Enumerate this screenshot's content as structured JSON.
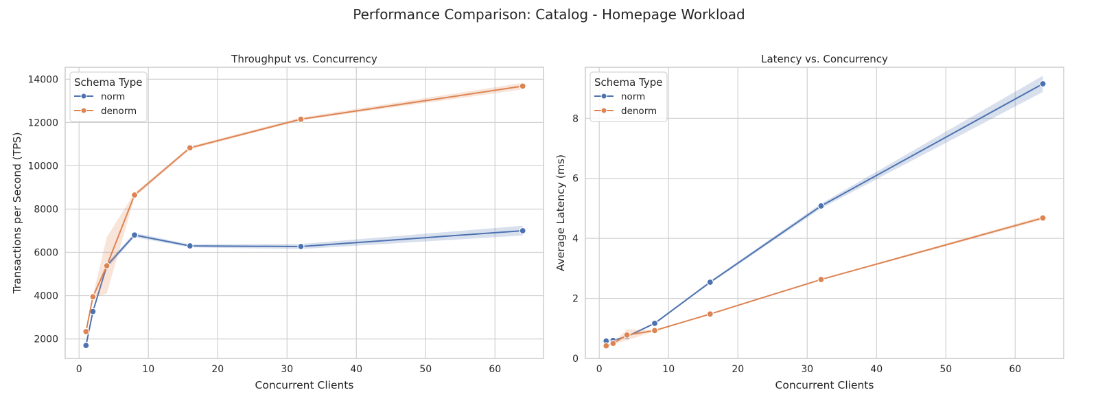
{
  "suptitle": "Performance Comparison: Catalog - Homepage Workload",
  "colors": {
    "norm": "#4c72b0",
    "denorm": "#dd8452",
    "grid": "#d0d0d0",
    "axes": "#cccccc"
  },
  "chart_data": [
    {
      "type": "line",
      "title": "Throughput vs. Concurrency",
      "xlabel": "Concurrent Clients",
      "ylabel": "Transactions per Second (TPS)",
      "xlim": [
        -2,
        67
      ],
      "ylim": [
        1100,
        14550
      ],
      "xticks": [
        0,
        10,
        20,
        30,
        40,
        50,
        60
      ],
      "yticks": [
        2000,
        4000,
        6000,
        8000,
        10000,
        12000,
        14000
      ],
      "grid": true,
      "legend": {
        "title": "Schema Type",
        "position": "top-left"
      },
      "series": [
        {
          "name": "norm",
          "x": [
            1,
            2,
            4,
            8,
            16,
            32,
            64
          ],
          "y": [
            1700,
            3270,
            5380,
            6800,
            6300,
            6270,
            7000
          ],
          "ci_low": [
            1680,
            3200,
            5250,
            6700,
            6230,
            6150,
            6780
          ],
          "ci_high": [
            1720,
            3330,
            5500,
            6900,
            6370,
            6390,
            7230
          ]
        },
        {
          "name": "denorm",
          "x": [
            1,
            2,
            4,
            8,
            16,
            32,
            64
          ],
          "y": [
            2340,
            3950,
            5380,
            8650,
            10830,
            12150,
            13680
          ],
          "ci_low": [
            2300,
            3900,
            4100,
            8550,
            10750,
            12100,
            13530
          ],
          "ci_high": [
            2380,
            4000,
            6700,
            8750,
            10900,
            12230,
            13830
          ]
        }
      ]
    },
    {
      "type": "line",
      "title": "Latency vs. Concurrency",
      "xlabel": "Concurrent Clients",
      "ylabel": "Average Latency (ms)",
      "xlim": [
        -2,
        67
      ],
      "ylim": [
        0,
        9.7
      ],
      "xticks": [
        0,
        10,
        20,
        30,
        40,
        50,
        60
      ],
      "yticks": [
        0,
        2,
        4,
        6,
        8
      ],
      "grid": true,
      "legend": {
        "title": "Schema Type",
        "position": "top-left"
      },
      "series": [
        {
          "name": "norm",
          "x": [
            1,
            2,
            4,
            8,
            16,
            32,
            64
          ],
          "y": [
            0.58,
            0.6,
            0.73,
            1.17,
            2.54,
            5.08,
            9.15
          ],
          "ci_low": [
            0.56,
            0.58,
            0.7,
            1.14,
            2.5,
            5.0,
            8.88
          ],
          "ci_high": [
            0.6,
            0.62,
            0.76,
            1.2,
            2.58,
            5.16,
            9.42
          ]
        },
        {
          "name": "denorm",
          "x": [
            1,
            2,
            4,
            8,
            16,
            32,
            64
          ],
          "y": [
            0.42,
            0.5,
            0.78,
            0.93,
            1.48,
            2.63,
            4.68
          ],
          "ci_low": [
            0.4,
            0.48,
            0.6,
            0.91,
            1.46,
            2.61,
            4.62
          ],
          "ci_high": [
            0.44,
            0.52,
            0.97,
            0.95,
            1.5,
            2.65,
            4.74
          ]
        }
      ]
    }
  ]
}
